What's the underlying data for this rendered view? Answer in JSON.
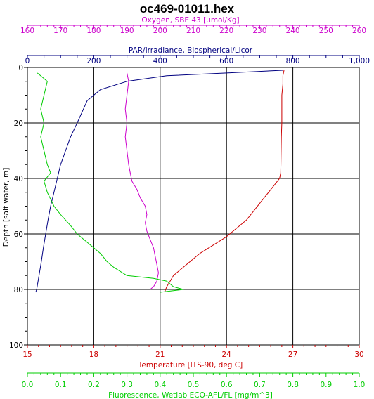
{
  "title": "oc469-01011.hex",
  "chart_data": {
    "type": "line",
    "title": "oc469-01011.hex",
    "y_axis": {
      "label": "Depth [salt water, m]",
      "range": [
        0,
        100
      ],
      "ticks": [
        0,
        20,
        40,
        60,
        80,
        100
      ],
      "tick_labels": [
        "0",
        "20",
        "40",
        "60",
        "80",
        "100"
      ],
      "inverted": true,
      "color": "#000000"
    },
    "x_axes": [
      {
        "id": "oxygen",
        "label": "Oxygen, SBE 43 [umol/Kg]",
        "position": "top-outer",
        "range": [
          160,
          260
        ],
        "ticks": [
          160,
          170,
          180,
          190,
          200,
          210,
          220,
          230,
          240,
          250,
          260
        ],
        "tick_labels": [
          "160",
          "170",
          "180",
          "190",
          "200",
          "210",
          "220",
          "230",
          "240",
          "250",
          "260"
        ],
        "color": "#cc00cc"
      },
      {
        "id": "par",
        "label": "PAR/Irradiance, Biospherical/Licor",
        "position": "top-inner",
        "range": [
          0,
          1000
        ],
        "ticks": [
          0,
          200,
          400,
          600,
          800,
          1000
        ],
        "tick_labels": [
          "0",
          "200",
          "400",
          "600",
          "800",
          "1,000"
        ],
        "color": "#000080"
      },
      {
        "id": "temperature",
        "label": "Temperature [ITS-90, deg C]",
        "position": "bottom-inner",
        "range": [
          15,
          30
        ],
        "ticks": [
          15,
          18,
          21,
          24,
          27,
          30
        ],
        "tick_labels": [
          "15",
          "18",
          "21",
          "24",
          "27",
          "30"
        ],
        "color": "#cc0000"
      },
      {
        "id": "fluorescence",
        "label": "Fluorescence, Wetlab ECO-AFL/FL [mg/m^3]",
        "position": "bottom-outer",
        "range": [
          0.0,
          1.0
        ],
        "ticks": [
          0.0,
          0.1,
          0.2,
          0.3,
          0.4,
          0.5,
          0.6,
          0.7,
          0.8,
          0.9,
          1.0
        ],
        "tick_labels": [
          "0.0",
          "0.1",
          "0.2",
          "0.3",
          "0.4",
          "0.5",
          "0.6",
          "0.7",
          "0.8",
          "0.9",
          "1.0"
        ],
        "color": "#00cc00"
      }
    ],
    "grid": true,
    "series": [
      {
        "axis": "temperature",
        "color": "#cc0000",
        "points": [
          [
            26.6,
            1
          ],
          [
            26.55,
            3
          ],
          [
            26.55,
            6
          ],
          [
            26.5,
            10
          ],
          [
            26.5,
            15
          ],
          [
            26.5,
            20
          ],
          [
            26.48,
            25
          ],
          [
            26.47,
            30
          ],
          [
            26.46,
            35
          ],
          [
            26.45,
            38
          ],
          [
            26.4,
            40
          ],
          [
            26.2,
            42
          ],
          [
            25.9,
            45
          ],
          [
            25.6,
            48
          ],
          [
            25.2,
            52
          ],
          [
            24.9,
            55
          ],
          [
            24.6,
            57
          ],
          [
            24.3,
            59
          ],
          [
            24.0,
            61
          ],
          [
            23.6,
            63
          ],
          [
            23.2,
            65
          ],
          [
            22.8,
            67
          ],
          [
            22.5,
            69
          ],
          [
            22.2,
            71
          ],
          [
            21.9,
            73
          ],
          [
            21.6,
            75
          ],
          [
            21.45,
            77
          ],
          [
            21.3,
            79
          ],
          [
            21.25,
            80
          ],
          [
            21.2,
            81
          ]
        ]
      },
      {
        "axis": "oxygen",
        "color": "#cc00cc",
        "points": [
          [
            190,
            2
          ],
          [
            190.5,
            5
          ],
          [
            190,
            10
          ],
          [
            189.5,
            15
          ],
          [
            190,
            20
          ],
          [
            189.5,
            25
          ],
          [
            190,
            30
          ],
          [
            190.5,
            35
          ],
          [
            191,
            38
          ],
          [
            191.5,
            41
          ],
          [
            193,
            44
          ],
          [
            194,
            47
          ],
          [
            195.5,
            50
          ],
          [
            196,
            53
          ],
          [
            195.5,
            56
          ],
          [
            196,
            59
          ],
          [
            197,
            62
          ],
          [
            198,
            65
          ],
          [
            198.5,
            68
          ],
          [
            199,
            71
          ],
          [
            199.5,
            74
          ],
          [
            199,
            77
          ],
          [
            198,
            79
          ],
          [
            197,
            80
          ]
        ]
      },
      {
        "axis": "par",
        "color": "#000080",
        "points": [
          [
            770,
            1
          ],
          [
            600,
            2
          ],
          [
            420,
            3
          ],
          [
            300,
            5
          ],
          [
            220,
            8
          ],
          [
            180,
            12
          ],
          [
            165,
            16
          ],
          [
            150,
            20
          ],
          [
            130,
            25
          ],
          [
            115,
            30
          ],
          [
            100,
            35
          ],
          [
            90,
            40
          ],
          [
            80,
            45
          ],
          [
            70,
            50
          ],
          [
            62,
            55
          ],
          [
            55,
            60
          ],
          [
            48,
            65
          ],
          [
            42,
            70
          ],
          [
            35,
            75
          ],
          [
            28,
            80
          ],
          [
            25,
            81
          ]
        ]
      },
      {
        "axis": "fluorescence",
        "color": "#00cc00",
        "points": [
          [
            0.03,
            2
          ],
          [
            0.06,
            5
          ],
          [
            0.05,
            10
          ],
          [
            0.04,
            15
          ],
          [
            0.05,
            20
          ],
          [
            0.04,
            25
          ],
          [
            0.05,
            30
          ],
          [
            0.06,
            35
          ],
          [
            0.07,
            38
          ],
          [
            0.05,
            41
          ],
          [
            0.06,
            45
          ],
          [
            0.08,
            50
          ],
          [
            0.1,
            53
          ],
          [
            0.13,
            57
          ],
          [
            0.15,
            60
          ],
          [
            0.18,
            63
          ],
          [
            0.22,
            67
          ],
          [
            0.24,
            70
          ],
          [
            0.26,
            72
          ],
          [
            0.3,
            75
          ],
          [
            0.38,
            76
          ],
          [
            0.42,
            77
          ],
          [
            0.44,
            79
          ],
          [
            0.47,
            80
          ],
          [
            0.4,
            81
          ]
        ]
      }
    ]
  }
}
